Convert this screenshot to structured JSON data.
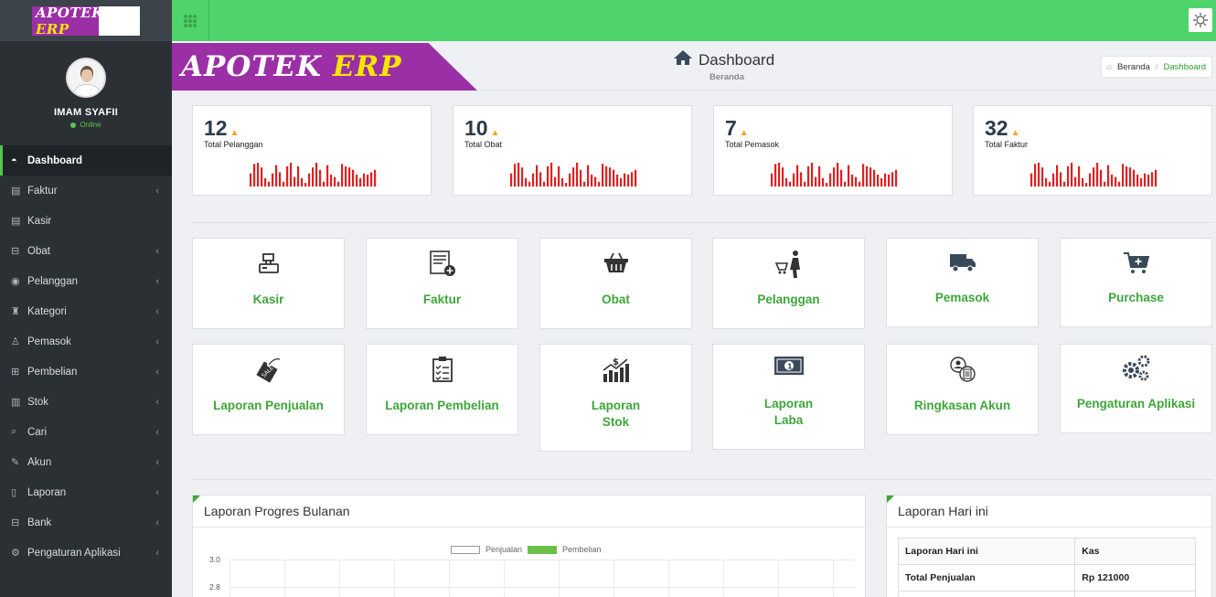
{
  "brand": {
    "name_a": "APOTEK",
    "name_b": "ERP"
  },
  "profile": {
    "name": "IMAM SYAFII",
    "status": "Online"
  },
  "sidebar": {
    "items": [
      {
        "label": "Dashboard",
        "icon": "dashboard-icon",
        "glyph": "◓"
      },
      {
        "label": "Faktur",
        "icon": "invoice-icon",
        "glyph": "▤"
      },
      {
        "label": "Kasir",
        "icon": "cashier-icon",
        "glyph": "▤"
      },
      {
        "label": "Obat",
        "icon": "medicine-icon",
        "glyph": "⊟"
      },
      {
        "label": "Pelanggan",
        "icon": "customer-icon",
        "glyph": "◉"
      },
      {
        "label": "Kategori",
        "icon": "category-icon",
        "glyph": "♜"
      },
      {
        "label": "Pemasok",
        "icon": "supplier-icon",
        "glyph": "♙"
      },
      {
        "label": "Pembelian",
        "icon": "cart-icon",
        "glyph": "⊞"
      },
      {
        "label": "Stok",
        "icon": "bar-chart-icon",
        "glyph": "▥"
      },
      {
        "label": "Cari",
        "icon": "search-icon",
        "glyph": "⌕"
      },
      {
        "label": "Akun",
        "icon": "edit-icon",
        "glyph": "✎"
      },
      {
        "label": "Laporan",
        "icon": "book-icon",
        "glyph": "▯"
      },
      {
        "label": "Bank",
        "icon": "bank-icon",
        "glyph": "⊟"
      },
      {
        "label": "Pengaturan Aplikasi",
        "icon": "gear-icon",
        "glyph": "⚙"
      }
    ]
  },
  "header": {
    "title": "Dashboard",
    "subtitle": "Beranda",
    "breadcrumb": {
      "home": "Beranda",
      "separator": "/",
      "current": "Dashboard"
    }
  },
  "stats": [
    {
      "value": "12",
      "label": "Total Pelanggan"
    },
    {
      "value": "10",
      "label": "Total Obat"
    },
    {
      "value": "7",
      "label": "Total Pemasok"
    },
    {
      "value": "32",
      "label": "Total Faktur"
    }
  ],
  "sparkline": {
    "color": "#e02020",
    "levels": [
      0.55,
      0.95,
      1.0,
      0.8,
      0.35,
      0.2,
      0.55,
      0.9,
      0.6,
      0.2,
      0.85,
      1.0,
      0.4,
      0.85,
      0.35,
      0.15,
      0.55,
      0.8,
      1.0,
      0.7,
      0.2,
      0.9,
      0.5,
      0.4,
      0.2,
      0.95,
      0.85,
      0.8,
      0.7,
      0.5,
      0.35,
      0.55,
      0.5,
      0.6,
      0.7
    ]
  },
  "tiles": [
    {
      "label": "Kasir",
      "icon": "cash-register-icon"
    },
    {
      "label": "Faktur",
      "icon": "invoice-add-icon"
    },
    {
      "label": "Obat",
      "icon": "basket-icon"
    },
    {
      "label": "Pelanggan",
      "icon": "shopper-icon"
    },
    {
      "label": "Pemasok",
      "icon": "truck-icon"
    },
    {
      "label": "Purchase",
      "icon": "cart-plus-icon"
    },
    {
      "label": "Laporan Penjualan",
      "icon": "sale-tag-icon"
    },
    {
      "label": "Laporan Pembelian",
      "icon": "clipboard-list-icon"
    },
    {
      "label": "Laporan Stok",
      "line1": "Laporan",
      "line2": "Stok",
      "icon": "growth-chart-icon"
    },
    {
      "label": "Laporan Laba",
      "line1": "Laporan",
      "line2": "Laba",
      "icon": "money-bill-icon"
    },
    {
      "label": "Ringkasan Akun",
      "icon": "account-summary-icon"
    },
    {
      "label": "Pengaturan Aplikasi",
      "icon": "gears-icon"
    }
  ],
  "panels": {
    "progress": {
      "title": "Laporan Progres Bulanan",
      "legend": [
        "Penjualan",
        "Pembelian"
      ],
      "colors": {
        "penjualan": "#ffffff",
        "pembelian": "#6cc04a"
      },
      "y_ticks": [
        "3.0",
        "2.8"
      ]
    },
    "today": {
      "title": "Laporan Hari ini",
      "table": {
        "headers": [
          "Laporan Hari ini",
          "Kas"
        ],
        "rows": [
          [
            "Total Penjualan",
            "Rp 121000"
          ]
        ]
      }
    }
  },
  "colors": {
    "accent": "#4fd36b",
    "tile_text": "#3ea63a",
    "banner": "#9b2fa5",
    "brand_yellow": "#f7e600"
  }
}
